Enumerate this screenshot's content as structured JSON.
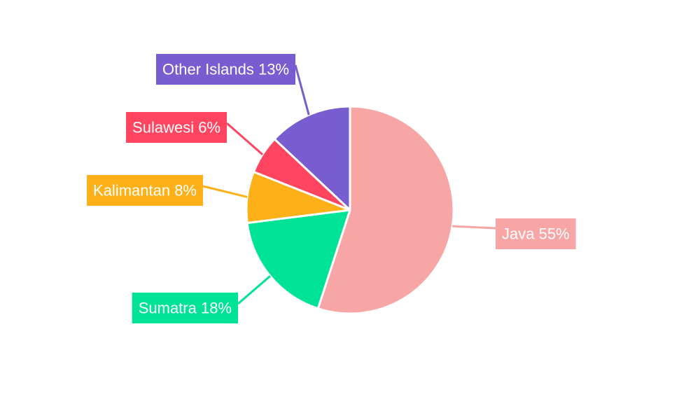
{
  "chart_data": {
    "type": "pie",
    "start_angle_deg": 0,
    "direction": "clockwise",
    "slices": [
      {
        "label": "Java",
        "value": 55,
        "text": "Java 55%",
        "color": "#f8a5a6"
      },
      {
        "label": "Sumatra",
        "value": 18,
        "text": "Sumatra 18%",
        "color": "#00e396"
      },
      {
        "label": "Kalimantan",
        "value": 8,
        "text": "Kalimantan 8%",
        "color": "#feb019"
      },
      {
        "label": "Sulawesi",
        "value": 6,
        "text": "Sulawesi 6%",
        "color": "#ff4560"
      },
      {
        "label": "Other Islands",
        "value": 13,
        "text": "Other Islands 13%",
        "color": "#775dd0"
      }
    ],
    "label_text_color": "#ffffff",
    "slice_border_color": "#ffffff",
    "legend": "none"
  }
}
